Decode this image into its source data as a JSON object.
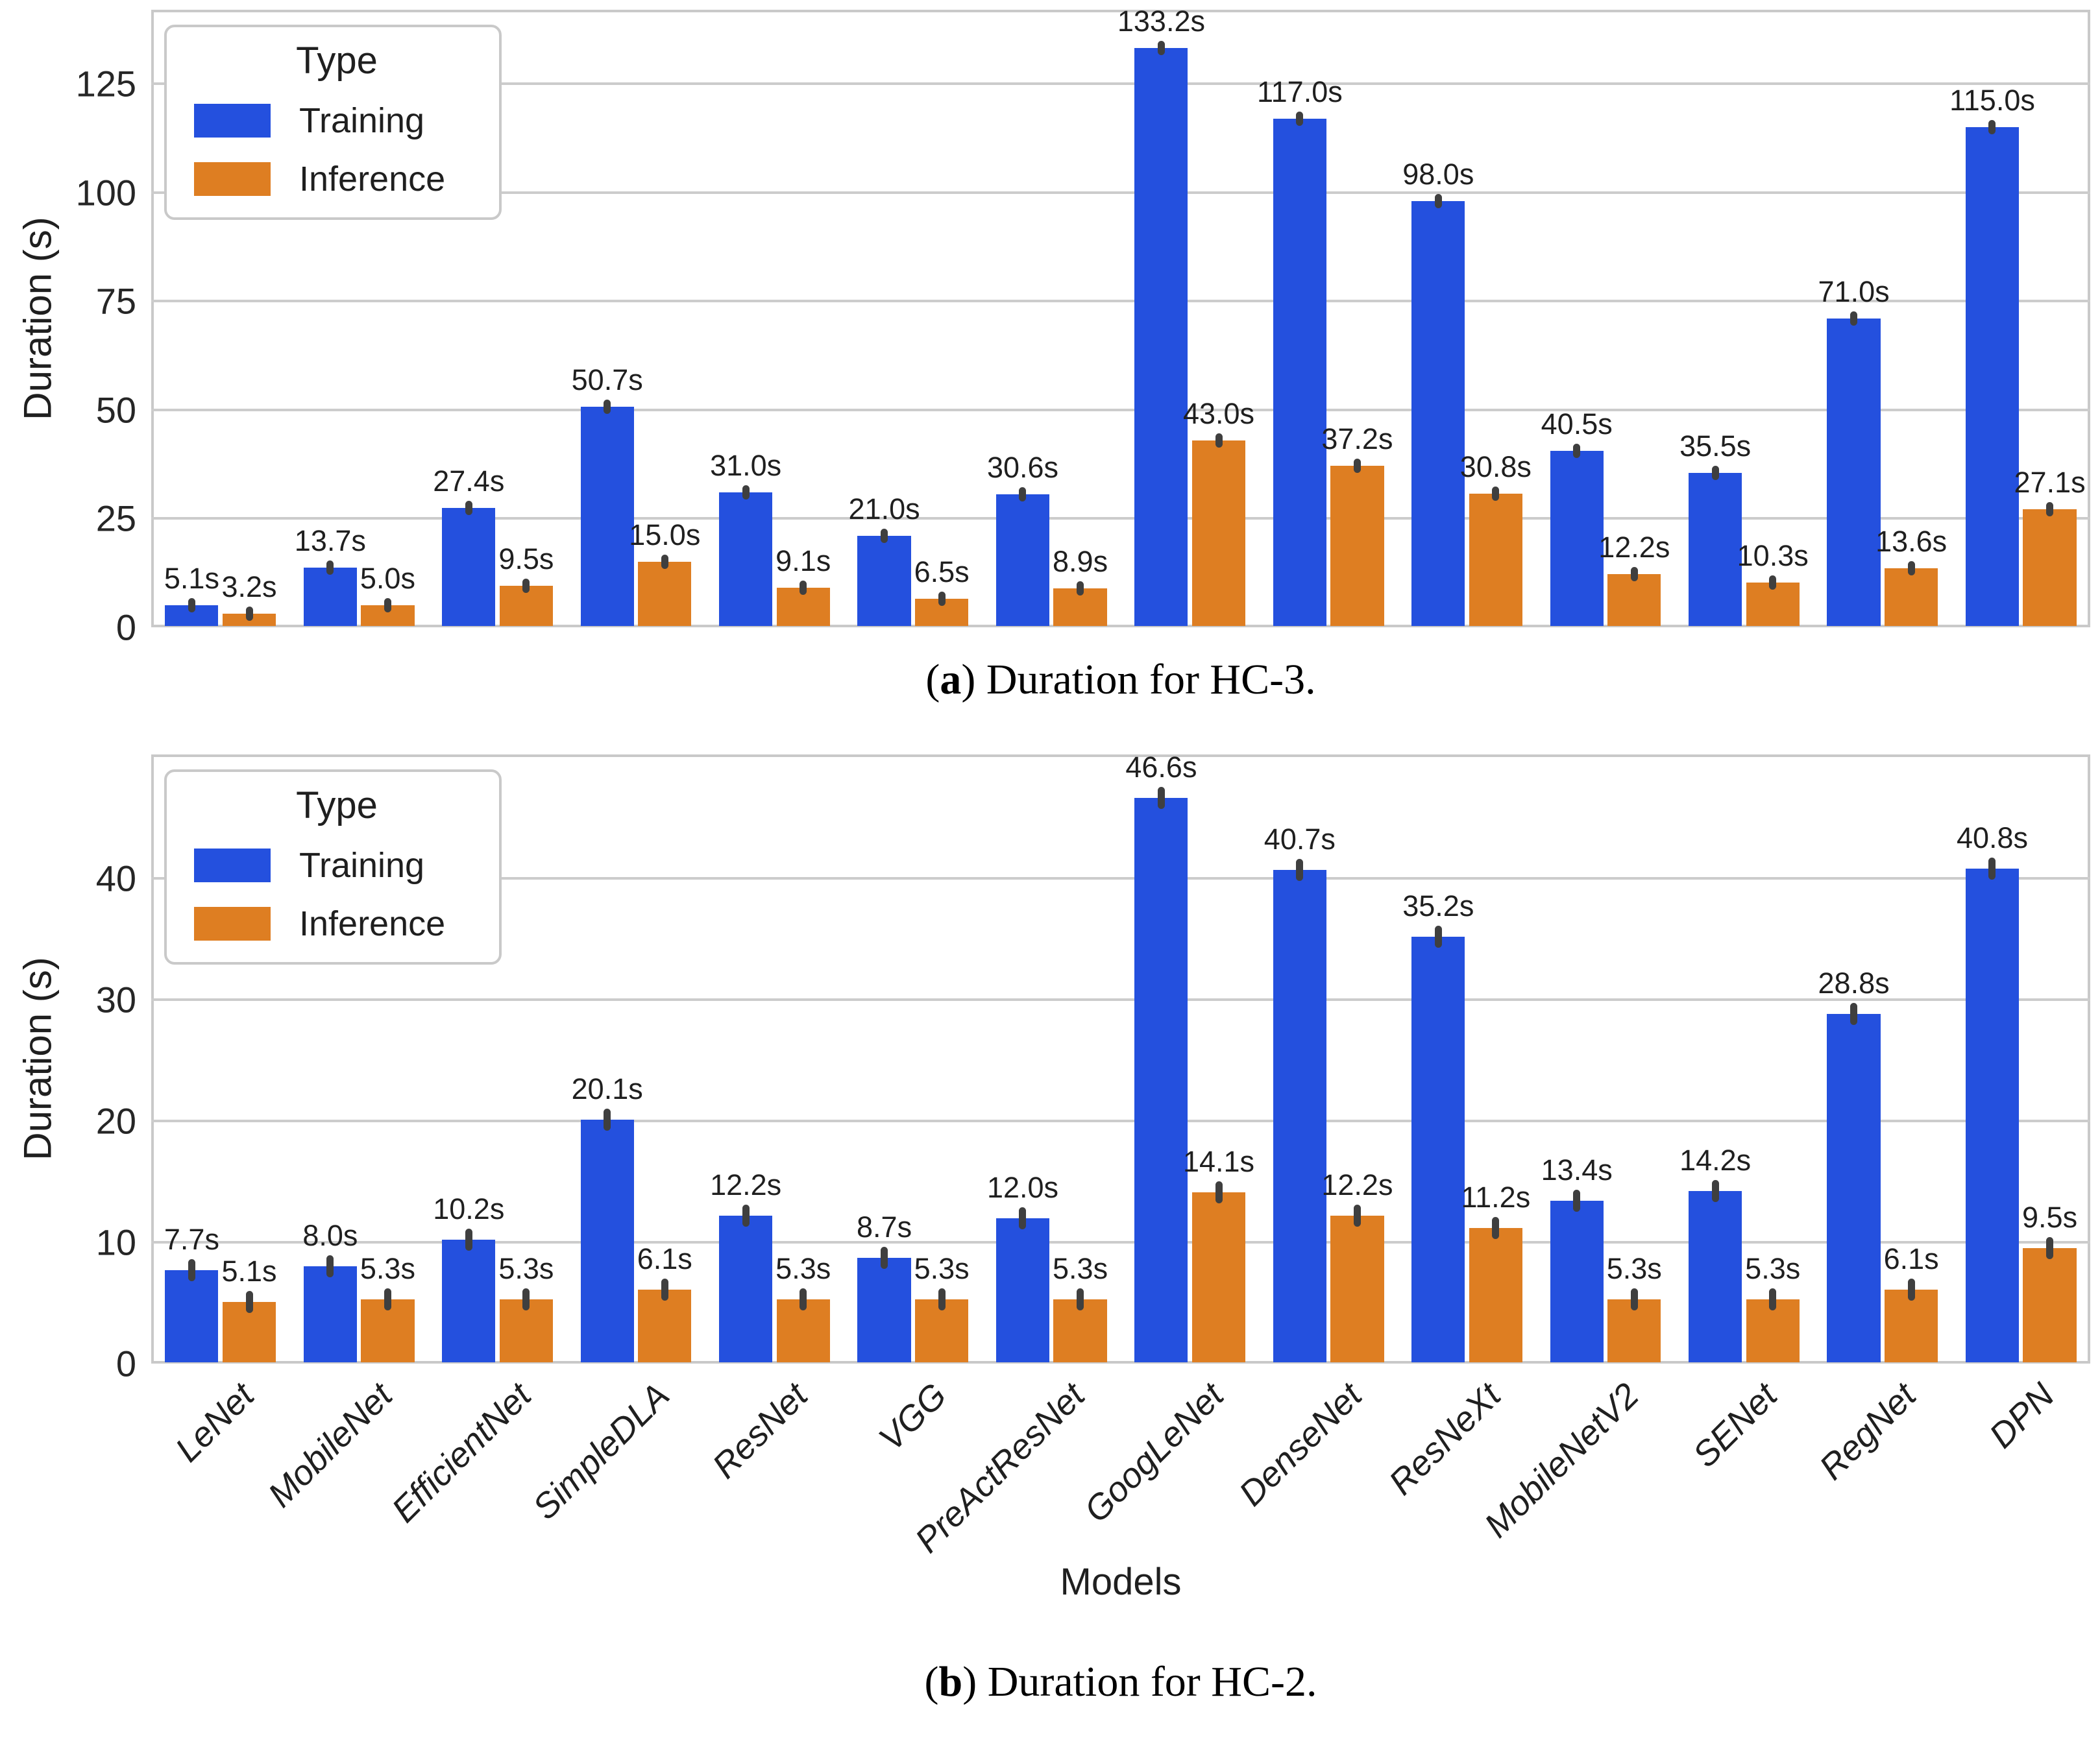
{
  "figure": {
    "background": "#ffffff",
    "text_color": "#1f1f1f",
    "grid_color": "#cccccc",
    "border_color": "#c9c9c9",
    "error_marker_color": "#3f3f3f",
    "accent_blue": "#2450DE",
    "accent_orange": "#DE7E22"
  },
  "legend": {
    "title": "Type",
    "items": [
      {
        "label": "Training",
        "color": "#2450DE"
      },
      {
        "label": "Inference",
        "color": "#DE7E22"
      }
    ],
    "position": "upper left"
  },
  "ylabel": "Duration (s)",
  "xlabel": "Models",
  "captions": {
    "a": {
      "open": "(",
      "letter": "a",
      "rest": ") Duration for HC-3."
    },
    "b": {
      "open": "(",
      "letter": "b",
      "rest": ") Duration for HC-2."
    }
  },
  "chart_data": [
    {
      "id": "a",
      "type": "bar",
      "title": "Duration for HC-3",
      "ylabel": "Duration (s)",
      "xlabel": "",
      "ylim": [
        0,
        142
      ],
      "yticks": [
        0,
        25,
        50,
        75,
        100,
        125
      ],
      "grid": true,
      "error_bars": true,
      "legend_position": "upper left",
      "show_x_labels": false,
      "categories": [
        "LeNet",
        "MobileNet",
        "EfficientNet",
        "SimpleDLA",
        "ResNet",
        "VGG",
        "PreActResNet",
        "GoogLeNet",
        "DenseNet",
        "ResNeXt",
        "MobileNetV2",
        "SENet",
        "RegNet",
        "DPN"
      ],
      "series": [
        {
          "name": "Training",
          "color": "#2450DE",
          "values": [
            5.1,
            13.7,
            27.4,
            50.7,
            31.0,
            21.0,
            30.6,
            133.2,
            117.0,
            98.0,
            40.5,
            35.5,
            71.0,
            115.0
          ],
          "labels": [
            "5.1s",
            "13.7s",
            "27.4s",
            "50.7s",
            "31.0s",
            "21.0s",
            "30.6s",
            "133.2s",
            "117.0s",
            "98.0s",
            "40.5s",
            "35.5s",
            "71.0s",
            "115.0s"
          ]
        },
        {
          "name": "Inference",
          "color": "#DE7E22",
          "values": [
            3.2,
            5.0,
            9.5,
            15.0,
            9.1,
            6.5,
            8.9,
            43.0,
            37.2,
            30.8,
            12.2,
            10.3,
            13.6,
            27.1
          ],
          "labels": [
            "3.2s",
            "5.0s",
            "9.5s",
            "15.0s",
            "9.1s",
            "6.5s",
            "8.9s",
            "43.0s",
            "37.2s",
            "30.8s",
            "12.2s",
            "10.3s",
            "13.6s",
            "27.1s"
          ]
        }
      ]
    },
    {
      "id": "b",
      "type": "bar",
      "title": "Duration for HC-2",
      "ylabel": "Duration (s)",
      "xlabel": "Models",
      "ylim": [
        0,
        50.2
      ],
      "yticks": [
        0,
        10,
        20,
        30,
        40
      ],
      "grid": true,
      "error_bars": true,
      "legend_position": "upper left",
      "show_x_labels": true,
      "categories": [
        "LeNet",
        "MobileNet",
        "EfficientNet",
        "SimpleDLA",
        "ResNet",
        "VGG",
        "PreActResNet",
        "GoogLeNet",
        "DenseNet",
        "ResNeXt",
        "MobileNetV2",
        "SENet",
        "RegNet",
        "DPN"
      ],
      "series": [
        {
          "name": "Training",
          "color": "#2450DE",
          "values": [
            7.7,
            8.0,
            10.2,
            20.1,
            12.2,
            8.7,
            12.0,
            46.6,
            40.7,
            35.2,
            13.4,
            14.2,
            28.8,
            40.8
          ],
          "labels": [
            "7.7s",
            "8.0s",
            "10.2s",
            "20.1s",
            "12.2s",
            "8.7s",
            "12.0s",
            "46.6s",
            "40.7s",
            "35.2s",
            "13.4s",
            "14.2s",
            "28.8s",
            "40.8s"
          ]
        },
        {
          "name": "Inference",
          "color": "#DE7E22",
          "values": [
            5.1,
            5.3,
            5.3,
            6.1,
            5.3,
            5.3,
            5.3,
            14.1,
            12.2,
            11.2,
            5.3,
            5.3,
            6.1,
            9.5
          ],
          "labels": [
            "5.1s",
            "5.3s",
            "5.3s",
            "6.1s",
            "5.3s",
            "5.3s",
            "5.3s",
            "14.1s",
            "12.2s",
            "11.2s",
            "5.3s",
            "5.3s",
            "6.1s",
            "9.5s"
          ]
        }
      ]
    }
  ]
}
